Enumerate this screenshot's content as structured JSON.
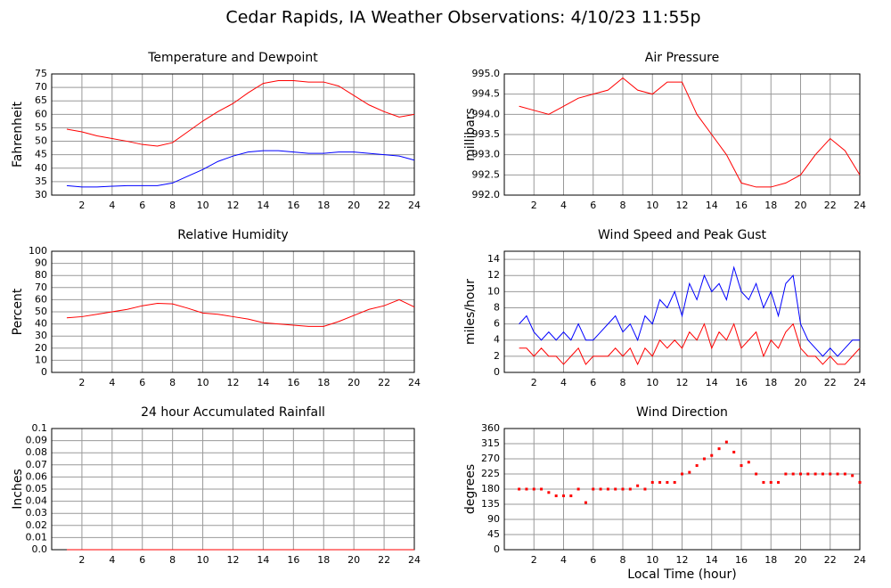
{
  "title": "Cedar Rapids, IA Weather Observations: 4/10/23 11:55p",
  "chart_data": [
    {
      "type": "line",
      "title": "Temperature and Dewpoint",
      "ylabel": "Fahrenheit",
      "x": [
        1,
        2,
        3,
        4,
        5,
        6,
        7,
        8,
        9,
        10,
        11,
        12,
        13,
        14,
        15,
        16,
        17,
        18,
        19,
        20,
        21,
        22,
        23,
        24
      ],
      "series": [
        {
          "color": "#ff0000",
          "values": [
            54.5,
            53.5,
            52,
            51,
            50,
            48.8,
            48.2,
            49.5,
            53.5,
            57.5,
            61,
            64,
            68,
            71.5,
            72.5,
            72.5,
            72,
            72,
            70.5,
            67,
            63.5,
            61,
            59,
            60
          ]
        },
        {
          "color": "#0000ff",
          "values": [
            33.5,
            33,
            33,
            33.3,
            33.5,
            33.5,
            33.5,
            34.5,
            37,
            39.5,
            42.5,
            44.5,
            46,
            46.5,
            46.5,
            46,
            45.5,
            45.5,
            46,
            46,
            45.5,
            45,
            44.5,
            43
          ]
        }
      ],
      "xlim": [
        0,
        24
      ],
      "xticks": [
        2,
        4,
        6,
        8,
        10,
        12,
        14,
        16,
        18,
        20,
        22,
        24
      ],
      "ylim": [
        30,
        75
      ],
      "yticks": [
        30,
        35,
        40,
        45,
        50,
        55,
        60,
        65,
        70,
        75
      ],
      "grid": true
    },
    {
      "type": "line",
      "title": "Air Pressure",
      "ylabel": "millibars",
      "x": [
        1,
        2,
        3,
        4,
        5,
        6,
        7,
        8,
        9,
        10,
        11,
        12,
        13,
        14,
        15,
        16,
        17,
        18,
        19,
        20,
        21,
        22,
        23,
        24
      ],
      "series": [
        {
          "color": "#ff0000",
          "values": [
            994.2,
            994.1,
            994.0,
            994.2,
            994.4,
            994.5,
            994.6,
            994.9,
            994.6,
            994.5,
            994.8,
            994.8,
            994.0,
            993.5,
            993.0,
            992.3,
            992.2,
            992.2,
            992.3,
            992.5,
            993.0,
            993.4,
            993.1,
            992.5
          ]
        }
      ],
      "xlim": [
        0,
        24
      ],
      "xticks": [
        2,
        4,
        6,
        8,
        10,
        12,
        14,
        16,
        18,
        20,
        22,
        24
      ],
      "ylim": [
        992,
        995
      ],
      "yticks": [
        {
          "value": 992,
          "label": "992.0"
        },
        992.5,
        {
          "value": 993,
          "label": "993.0"
        },
        993.5,
        {
          "value": 994,
          "label": "994.0"
        },
        994.5,
        {
          "value": 995,
          "label": "995.0"
        }
      ],
      "grid": true
    },
    {
      "type": "line",
      "title": "Relative Humidity",
      "ylabel": "Percent",
      "x": [
        1,
        2,
        3,
        4,
        5,
        6,
        7,
        8,
        9,
        10,
        11,
        12,
        13,
        14,
        15,
        16,
        17,
        18,
        19,
        20,
        21,
        22,
        23,
        24
      ],
      "series": [
        {
          "color": "#ff0000",
          "values": [
            45,
            46,
            48,
            50,
            52,
            55,
            57,
            56.5,
            53,
            49,
            48,
            46,
            44,
            41,
            40,
            39,
            38,
            38,
            42,
            47,
            52,
            55,
            60,
            54
          ]
        }
      ],
      "xlim": [
        0,
        24
      ],
      "xticks": [
        2,
        4,
        6,
        8,
        10,
        12,
        14,
        16,
        18,
        20,
        22,
        24
      ],
      "ylim": [
        0,
        100
      ],
      "yticks": [
        0,
        10,
        20,
        30,
        40,
        50,
        60,
        70,
        80,
        90,
        100
      ],
      "grid": true
    },
    {
      "type": "line",
      "title": "Wind Speed and Peak Gust",
      "ylabel": "miles/hour",
      "x": [
        1,
        1.5,
        2,
        2.5,
        3,
        3.5,
        4,
        4.5,
        5,
        5.5,
        6,
        6.5,
        7,
        7.5,
        8,
        8.5,
        9,
        9.5,
        10,
        10.5,
        11,
        11.5,
        12,
        12.5,
        13,
        13.5,
        14,
        14.5,
        15,
        15.5,
        16,
        16.5,
        17,
        17.5,
        18,
        18.5,
        19,
        19.5,
        20,
        20.5,
        21,
        21.5,
        22,
        22.5,
        23,
        23.5,
        24
      ],
      "series": [
        {
          "color": "#0000ff",
          "values": [
            6,
            7,
            5,
            4,
            5,
            4,
            5,
            4,
            6,
            4,
            4,
            5,
            6,
            7,
            5,
            6,
            4,
            7,
            6,
            9,
            8,
            10,
            7,
            11,
            9,
            12,
            10,
            11,
            9,
            13,
            10,
            9,
            11,
            8,
            10,
            7,
            11,
            12,
            6,
            4,
            3,
            2,
            3,
            2,
            3,
            4,
            4
          ]
        },
        {
          "color": "#ff0000",
          "values": [
            3,
            3,
            2,
            3,
            2,
            2,
            1,
            2,
            3,
            1,
            2,
            2,
            2,
            3,
            2,
            3,
            1,
            3,
            2,
            4,
            3,
            4,
            3,
            5,
            4,
            6,
            3,
            5,
            4,
            6,
            3,
            4,
            5,
            2,
            4,
            3,
            5,
            6,
            3,
            2,
            2,
            1,
            2,
            1,
            1,
            2,
            3
          ]
        }
      ],
      "xlim": [
        0,
        24
      ],
      "xticks": [
        2,
        4,
        6,
        8,
        10,
        12,
        14,
        16,
        18,
        20,
        22,
        24
      ],
      "ylim": [
        0,
        15
      ],
      "yticks": [
        0,
        2,
        4,
        6,
        8,
        10,
        12,
        14
      ],
      "grid": true
    },
    {
      "type": "line",
      "title": "24 hour Accumulated Rainfall",
      "ylabel": "Inches",
      "x": [
        1,
        2,
        3,
        4,
        5,
        6,
        7,
        8,
        9,
        10,
        11,
        12,
        13,
        14,
        15,
        16,
        17,
        18,
        19,
        20,
        21,
        22,
        23,
        24
      ],
      "series": [
        {
          "color": "#ff0000",
          "values": [
            0,
            0,
            0,
            0,
            0,
            0,
            0,
            0,
            0,
            0,
            0,
            0,
            0,
            0,
            0,
            0,
            0,
            0,
            0,
            0,
            0,
            0,
            0,
            0
          ]
        }
      ],
      "xlim": [
        0,
        24
      ],
      "xticks": [
        2,
        4,
        6,
        8,
        10,
        12,
        14,
        16,
        18,
        20,
        22,
        24
      ],
      "ylim": [
        0,
        0.1
      ],
      "yticks": [
        {
          "value": 0,
          "label": "0.0"
        },
        0.01,
        0.02,
        0.03,
        0.04,
        0.05,
        0.06,
        0.07,
        0.08,
        0.09,
        0.1
      ],
      "grid": true
    },
    {
      "type": "scatter",
      "title": "Wind Direction",
      "ylabel": "degrees",
      "xlabel": "Local Time (hour)",
      "x": [
        1,
        1.5,
        2,
        2.5,
        3,
        3.5,
        4,
        4.5,
        5,
        5.5,
        6,
        6.5,
        7,
        7.5,
        8,
        8.5,
        9,
        9.5,
        10,
        10.5,
        11,
        11.5,
        12,
        12.5,
        13,
        13.5,
        14,
        14.5,
        15,
        15.5,
        16,
        16.5,
        17,
        17.5,
        18,
        18.5,
        19,
        19.5,
        20,
        20.5,
        21,
        21.5,
        22,
        22.5,
        23,
        23.5,
        24
      ],
      "series": [
        {
          "color": "#ff0000",
          "values": [
            180,
            180,
            180,
            180,
            170,
            160,
            160,
            160,
            180,
            140,
            180,
            180,
            180,
            180,
            180,
            180,
            190,
            180,
            200,
            200,
            200,
            200,
            225,
            230,
            250,
            270,
            280,
            300,
            320,
            290,
            250,
            260,
            225,
            200,
            200,
            200,
            225,
            225,
            225,
            225,
            225,
            225,
            225,
            225,
            225,
            220,
            200
          ]
        }
      ],
      "xlim": [
        0,
        24
      ],
      "xticks": [
        2,
        4,
        6,
        8,
        10,
        12,
        14,
        16,
        18,
        20,
        22,
        24
      ],
      "ylim": [
        0,
        360
      ],
      "yticks": [
        0,
        45,
        90,
        135,
        180,
        225,
        270,
        315,
        360
      ],
      "grid": true
    }
  ]
}
